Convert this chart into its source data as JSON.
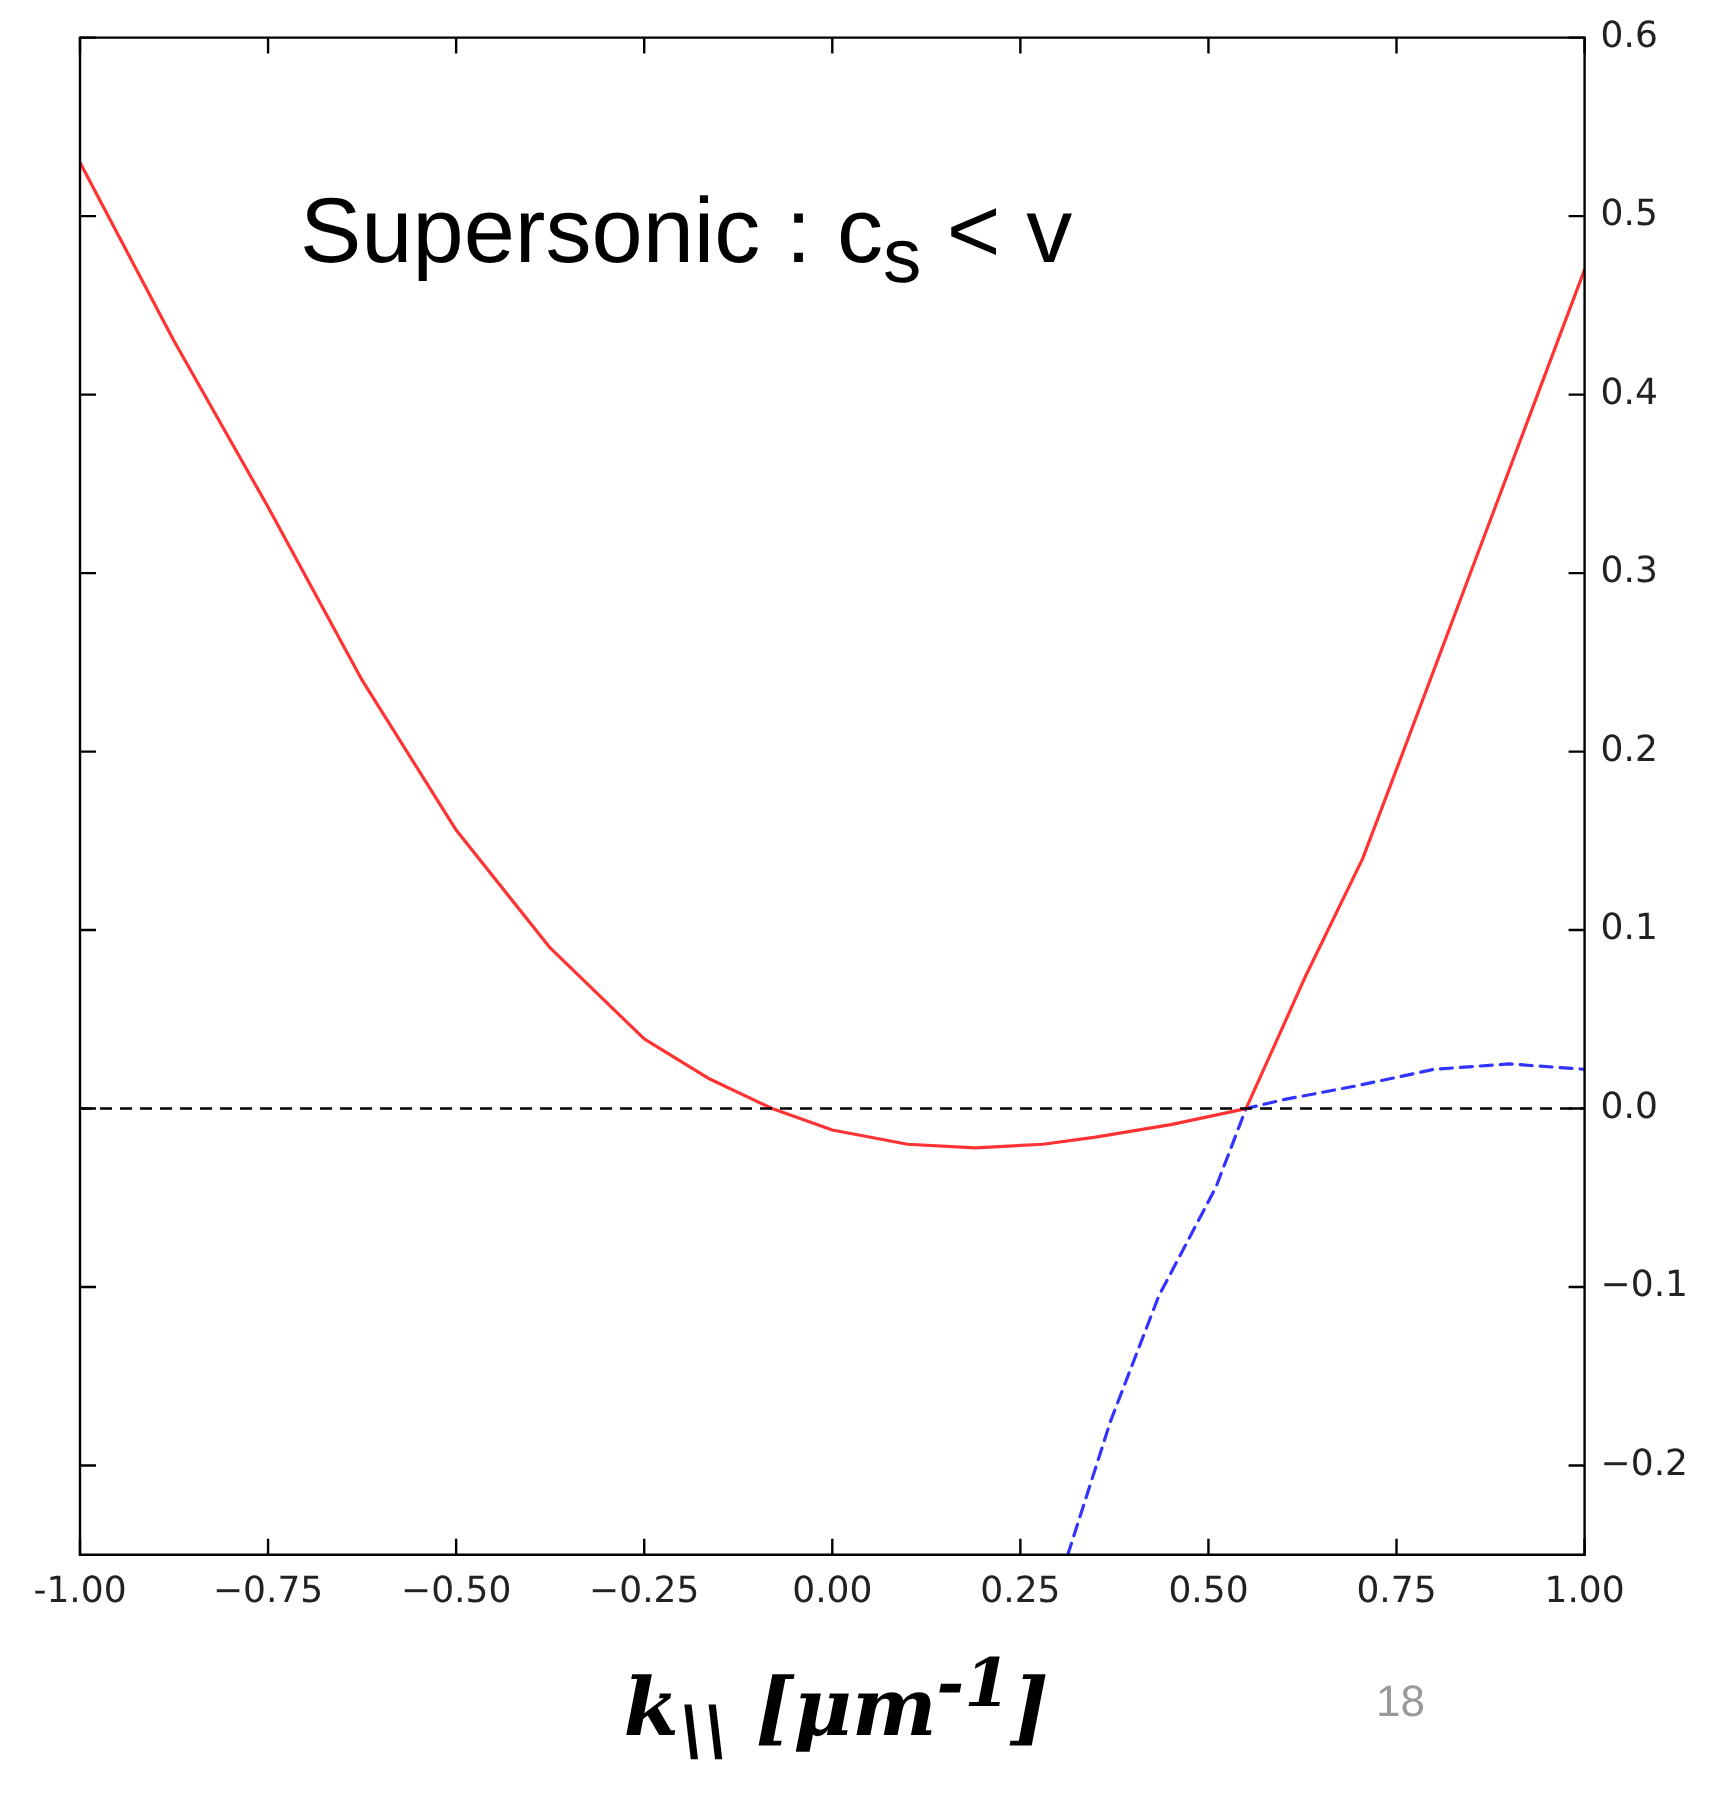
{
  "chart_data": {
    "type": "line",
    "xlabel": "k$_{\\\\}$ [μm$^{-1}$]",
    "title": "Supersonic :  c$_{s}$ < v",
    "annotations": [
      "18"
    ],
    "series": [
      {
        "color": "#ff3333",
        "line_style": "solid",
        "x": [
          -1,
          -0.875,
          -0.75,
          -0.625,
          -0.5,
          -0.375,
          -0.25,
          -0.165,
          -0.08,
          0.0,
          0.1,
          0.19,
          0.28,
          0.35,
          0.45,
          0.55,
          0.63,
          0.705,
          0.75,
          0.875,
          1.0
        ],
        "values": [
          0.53,
          0.43,
          0.337,
          0.24,
          0.156,
          0.09,
          0.039,
          0.017,
          0.0,
          -0.012,
          -0.02,
          -0.022,
          -0.02,
          -0.016,
          -0.009,
          0.0,
          0.075,
          0.14,
          0.19,
          0.33,
          0.47
        ]
      },
      {
        "color": "#3333ff",
        "line_style": "dashed",
        "x": [
          0.313,
          0.37,
          0.434,
          0.51,
          0.55,
          0.6,
          0.7,
          0.8,
          0.9,
          1.0
        ],
        "values": [
          -0.25,
          -0.175,
          -0.105,
          -0.044,
          0.0,
          0.005,
          0.013,
          0.022,
          0.025,
          0.022
        ]
      }
    ],
    "xlim": [
      -1,
      1
    ],
    "xticks": [
      {
        "value": -1,
        "label": "-1.00"
      },
      {
        "value": -0.75,
        "label": "−0.75"
      },
      {
        "value": -0.5,
        "label": "−0.50"
      },
      {
        "value": -0.25,
        "label": "−0.25"
      },
      {
        "value": 0,
        "label": "0.00"
      },
      {
        "value": 0.25,
        "label": "0.25"
      },
      {
        "value": 0.5,
        "label": "0.50"
      },
      {
        "value": 0.75,
        "label": "0.75"
      },
      {
        "value": 1,
        "label": "1.00"
      }
    ],
    "ylim": [
      -0.25,
      0.6
    ],
    "yticks": [
      {
        "value": -0.2,
        "label": "−0.2"
      },
      {
        "value": -0.1,
        "label": "−0.1"
      },
      {
        "value": 0,
        "label": "0.0"
      },
      0.1,
      0.2,
      0.3,
      0.4,
      0.5,
      0.6
    ],
    "ref_lines": [
      {
        "axis": "y",
        "value": 0,
        "color": "#000000",
        "line_style": "dashed"
      }
    ],
    "grid": false,
    "legend": false,
    "marker": "none"
  }
}
